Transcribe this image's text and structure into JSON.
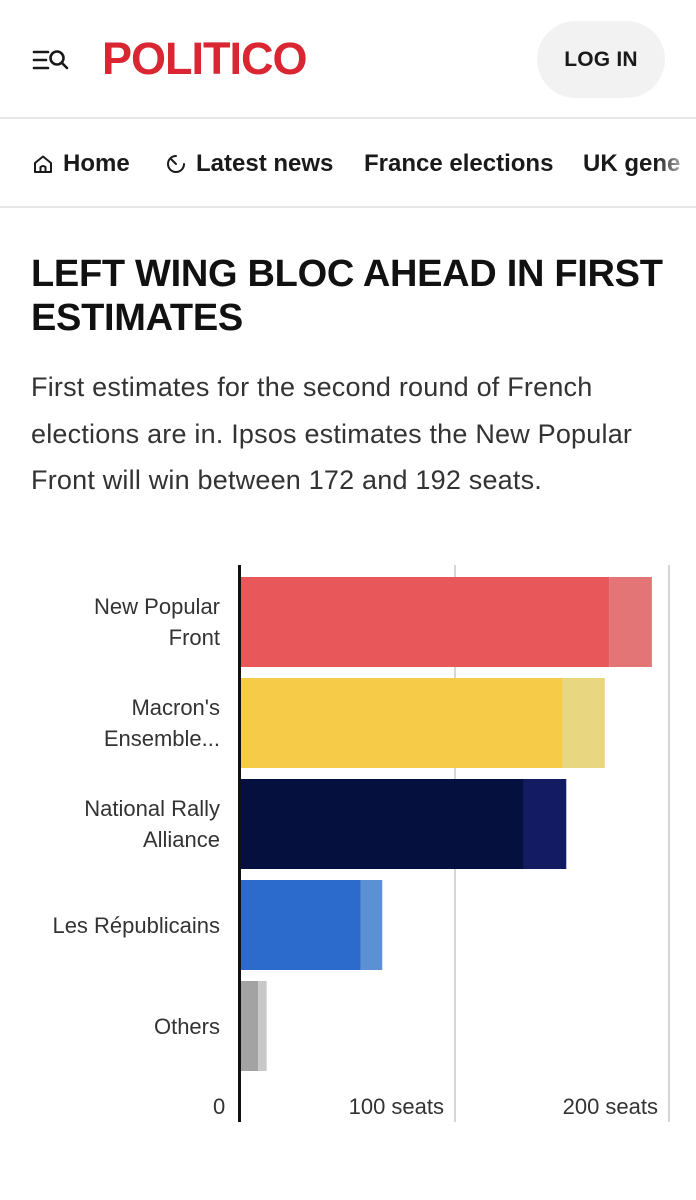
{
  "header": {
    "logo_text": "POLITICO",
    "menu_icon": "menu-search-icon",
    "login_label": "LOG IN",
    "brand_color": "#d92632"
  },
  "nav": {
    "items": [
      {
        "label": "Home",
        "icon": "home-icon"
      },
      {
        "label": "Latest news",
        "icon": "clock-icon"
      },
      {
        "label": "France elections"
      },
      {
        "label": "UK gene"
      }
    ]
  },
  "article": {
    "headline": "LEFT WING BLOC AHEAD IN FIRST ESTIMATES",
    "dek": "First estimates for the second round of French elections are in. Ipsos estimates the New Popular Front will win between 172 and 192 seats."
  },
  "chart_data": {
    "type": "bar",
    "orientation": "horizontal",
    "stacked": true,
    "categories": [
      [
        "New Popular",
        "Front"
      ],
      [
        "Macron's",
        "Ensemble..."
      ],
      [
        "National Rally",
        "Alliance"
      ],
      [
        "Les Républicains"
      ],
      [
        "Others"
      ]
    ],
    "series": [
      {
        "values": [
          172,
          150,
          132,
          56,
          8
        ],
        "colors": [
          "#e8585a",
          "#f5cb48",
          "#06103f",
          "#2c6acb",
          "#a3a3a3"
        ]
      },
      {
        "values": [
          20,
          20,
          20,
          10,
          4
        ],
        "colors": [
          "#e37577",
          "#e9d680",
          "#131c63",
          "#5b90d4",
          "#c8c8c8"
        ]
      }
    ],
    "xlim": [
      0,
      196
    ],
    "x_ticks": [
      {
        "value": 0,
        "label": "0"
      },
      {
        "value": 100,
        "label": "100 seats"
      },
      {
        "value": 200,
        "label": "200 seats"
      }
    ],
    "grid": true,
    "legend": "none"
  }
}
